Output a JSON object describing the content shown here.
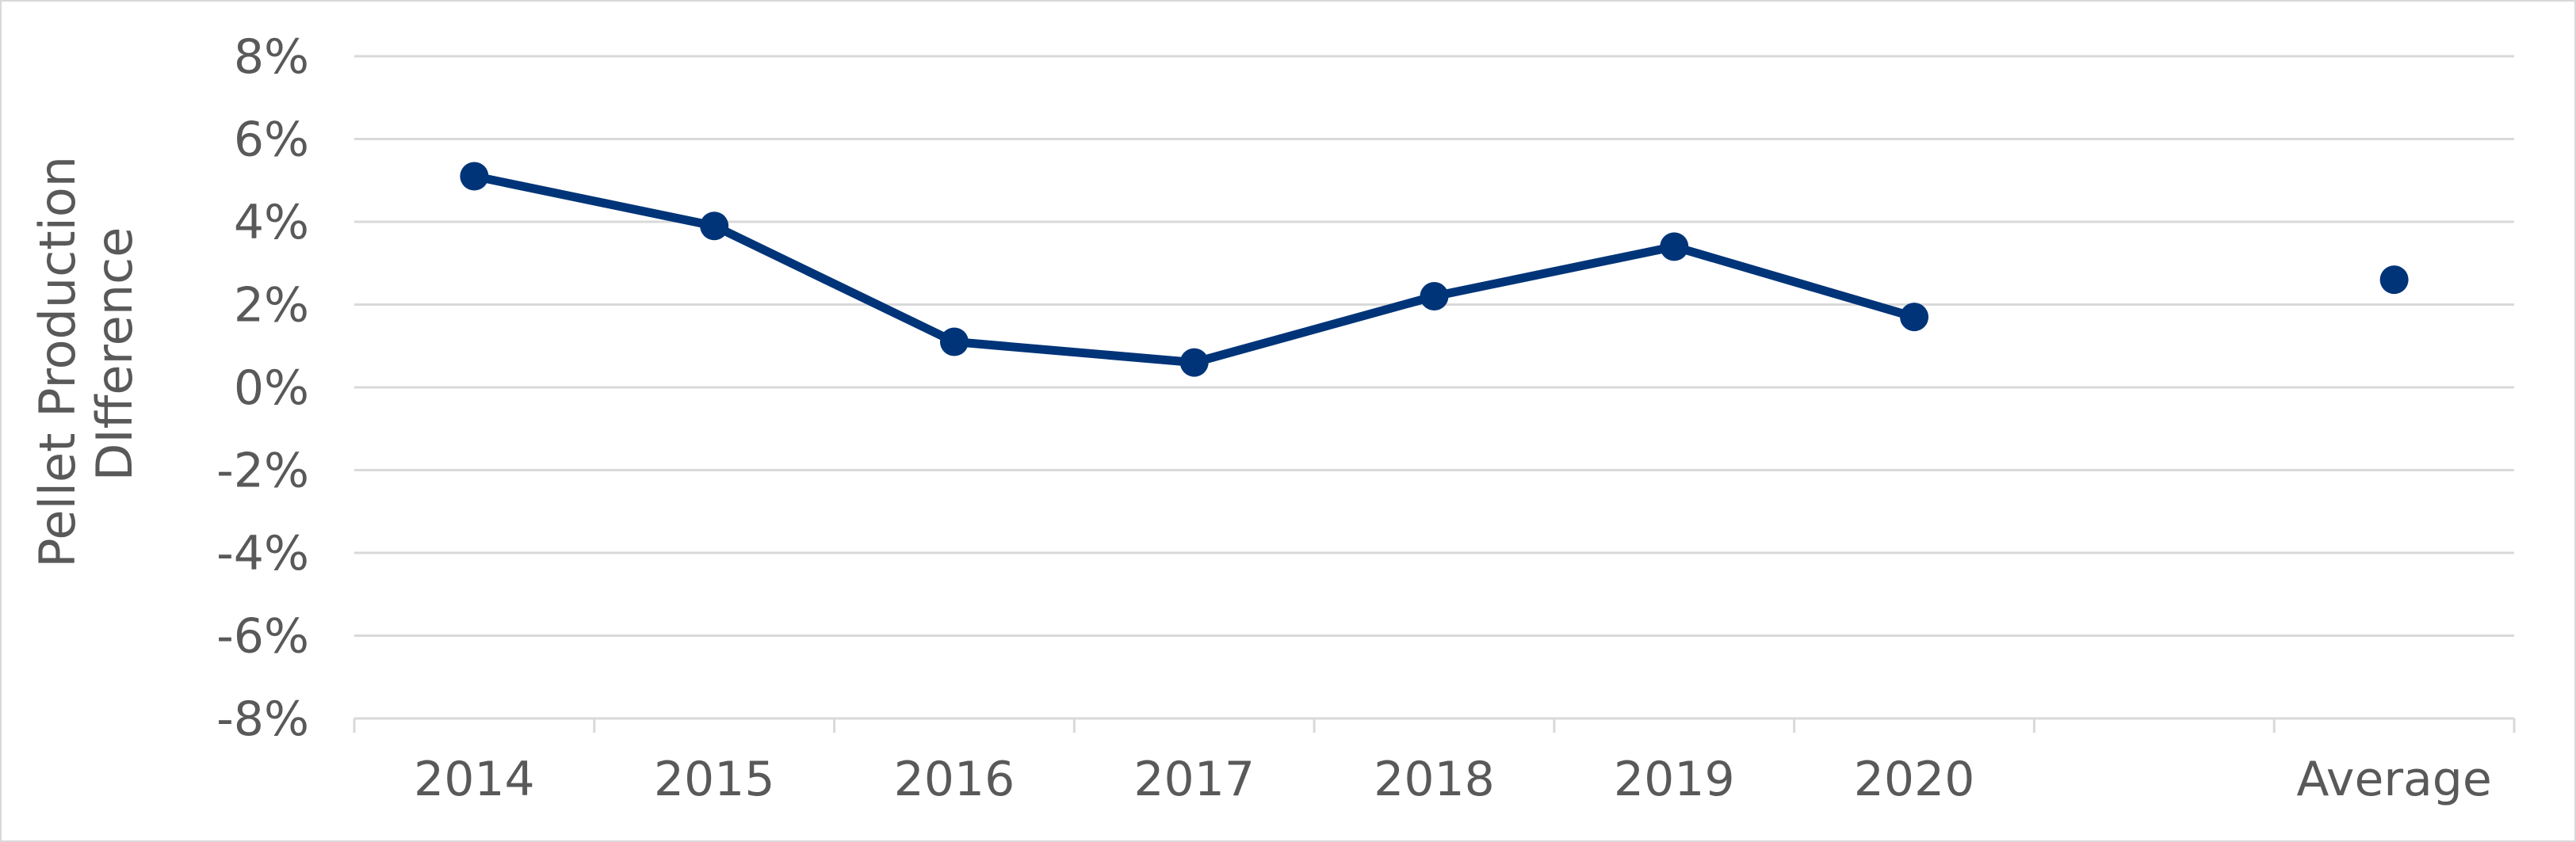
{
  "chart_data": {
    "type": "line",
    "title": "",
    "xlabel": "",
    "ylabel": "Pellet Production DIfference",
    "ylabel_lines": [
      "Pellet Production",
      "DIfference"
    ],
    "categories": [
      "2014",
      "2015",
      "2016",
      "2017",
      "2018",
      "2019",
      "2020",
      "",
      "Average"
    ],
    "series": [
      {
        "values": [
          0.051,
          0.039,
          0.011,
          0.006,
          0.022,
          0.034,
          0.017,
          null,
          null
        ],
        "color": "#003478",
        "style": "line-with-markers"
      },
      {
        "values": [
          null,
          null,
          null,
          null,
          null,
          null,
          null,
          null,
          0.026
        ],
        "color": "#003478",
        "style": "marker-only"
      }
    ],
    "ylim": [
      -0.08,
      0.08
    ],
    "y_ticks": [
      0.08,
      0.06,
      0.04,
      0.02,
      0,
      -0.02,
      -0.04,
      -0.06,
      -0.08
    ],
    "y_tick_labels": [
      "8%",
      "6%",
      "4%",
      "2%",
      "0%",
      "-2%",
      "-4%",
      "-6%",
      "-8%"
    ],
    "grid": true,
    "gridline_color": "#d9d9d9",
    "legend": "none"
  }
}
